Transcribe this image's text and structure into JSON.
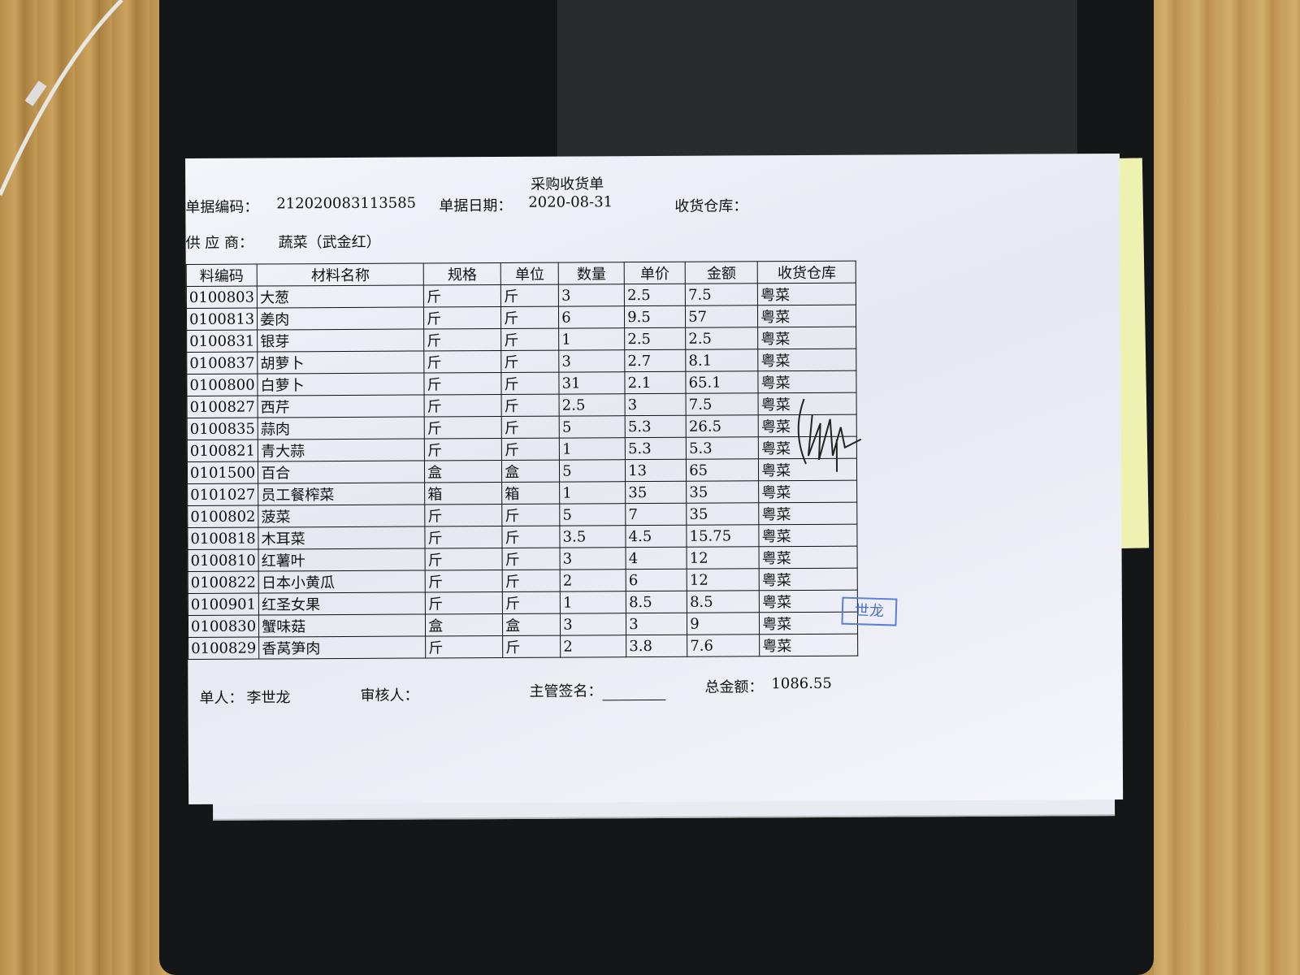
{
  "document": {
    "title": "采购收货单",
    "doc_no_label": "单据编码：",
    "doc_no": "212020083113585",
    "date_label": "单据日期：",
    "date": "2020-08-31",
    "warehouse_label": "收货仓库：",
    "supplier_label": "供 应 商：",
    "supplier": "蔬菜（武金红）"
  },
  "table": {
    "headers": [
      "料编码",
      "材料名称",
      "规格",
      "单位",
      "数量",
      "单价",
      "金额",
      "收货仓库"
    ],
    "rows": [
      [
        "0100803",
        "大葱",
        "斤",
        "斤",
        "3",
        "2.5",
        "7.5",
        "粤菜"
      ],
      [
        "0100813",
        "姜肉",
        "斤",
        "斤",
        "6",
        "9.5",
        "57",
        "粤菜"
      ],
      [
        "0100831",
        "银芽",
        "斤",
        "斤",
        "1",
        "2.5",
        "2.5",
        "粤菜"
      ],
      [
        "0100837",
        "胡萝卜",
        "斤",
        "斤",
        "3",
        "2.7",
        "8.1",
        "粤菜"
      ],
      [
        "0100800",
        "白萝卜",
        "斤",
        "斤",
        "31",
        "2.1",
        "65.1",
        "粤菜"
      ],
      [
        "0100827",
        "西芹",
        "斤",
        "斤",
        "2.5",
        "3",
        "7.5",
        "粤菜"
      ],
      [
        "0100835",
        "蒜肉",
        "斤",
        "斤",
        "5",
        "5.3",
        "26.5",
        "粤菜"
      ],
      [
        "0100821",
        "青大蒜",
        "斤",
        "斤",
        "1",
        "5.3",
        "5.3",
        "粤菜"
      ],
      [
        "0101500",
        "百合",
        "盒",
        "盒",
        "5",
        "13",
        "65",
        "粤菜"
      ],
      [
        "0101027",
        "员工餐榨菜",
        "箱",
        "箱",
        "1",
        "35",
        "35",
        "粤菜"
      ],
      [
        "0100802",
        "菠菜",
        "斤",
        "斤",
        "5",
        "7",
        "35",
        "粤菜"
      ],
      [
        "0100818",
        "木耳菜",
        "斤",
        "斤",
        "3.5",
        "4.5",
        "15.75",
        "粤菜"
      ],
      [
        "0100810",
        "红薯叶",
        "斤",
        "斤",
        "3",
        "4",
        "12",
        "粤菜"
      ],
      [
        "0100822",
        "日本小黄瓜",
        "斤",
        "斤",
        "2",
        "6",
        "12",
        "粤菜"
      ],
      [
        "0100901",
        "红圣女果",
        "斤",
        "斤",
        "1",
        "8.5",
        "8.5",
        "粤菜"
      ],
      [
        "0100830",
        "蟹味菇",
        "盒",
        "盒",
        "3",
        "3",
        "9",
        "粤菜"
      ],
      [
        "0100829",
        "香莴笋肉",
        "斤",
        "斤",
        "2",
        "3.8",
        "7.6",
        "粤菜"
      ]
    ]
  },
  "footer": {
    "maker_label": "单人：",
    "maker": "李世龙",
    "reviewer_label": "审核人：",
    "supervisor_label": "主管签名：",
    "total_label": "总金额：",
    "total": "1086.55"
  },
  "stamp": {
    "text": "世龙"
  },
  "colors": {
    "stamp": "#4a6fd0",
    "paper": "#f0f1f7",
    "tray": "#151617"
  }
}
